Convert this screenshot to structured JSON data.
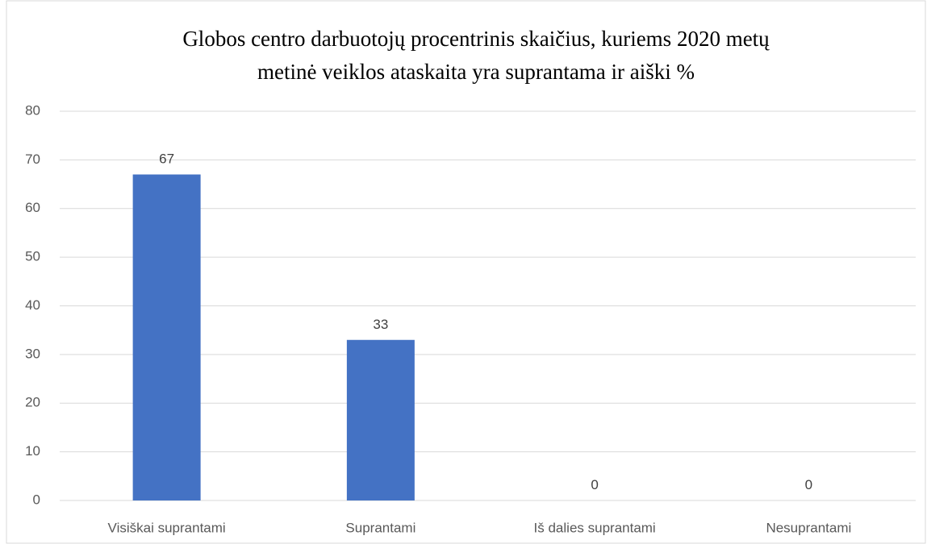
{
  "chart_data": {
    "type": "bar",
    "title": [
      "Globos centro darbuotojų procentrinis skaičius, kuriems 2020 metų",
      "metinė veiklos ataskaita yra suprantama ir aiški %"
    ],
    "categories": [
      "Visiškai suprantami",
      "Suprantami",
      "Iš dalies suprantami",
      "Nesuprantami"
    ],
    "values": [
      67,
      33,
      0,
      0
    ],
    "color": "#4472c4",
    "ylim": [
      0,
      80
    ],
    "yticks": [
      0,
      10,
      20,
      30,
      40,
      50,
      60,
      70,
      80
    ],
    "grid": true
  }
}
